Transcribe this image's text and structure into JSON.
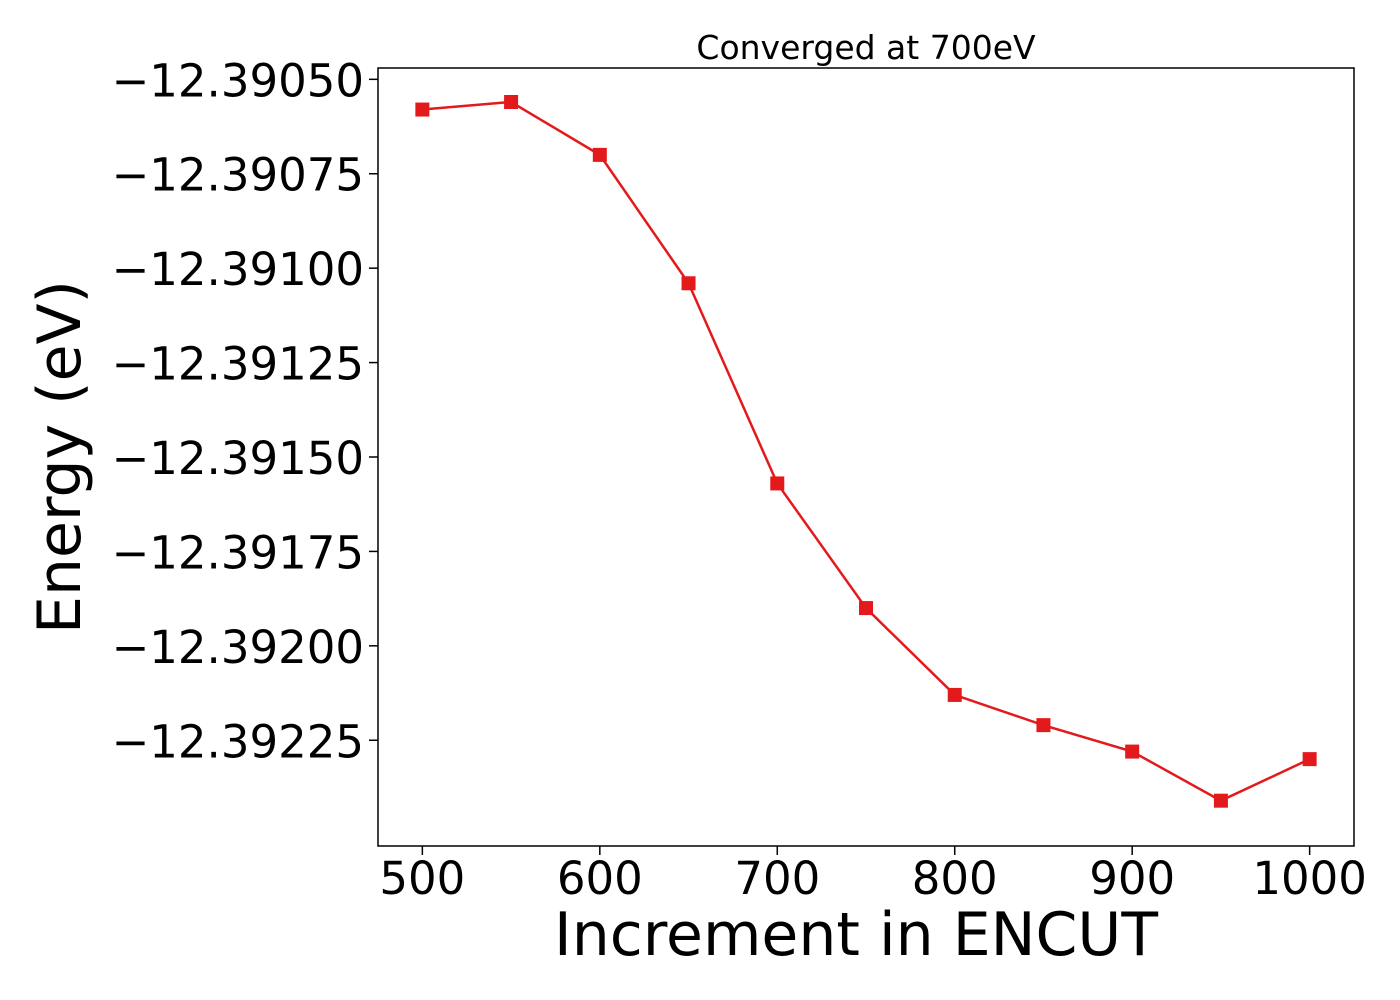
{
  "chart_data": {
    "type": "line",
    "title": "Converged at 700eV",
    "xlabel": "Increment in ENCUT",
    "ylabel": "Energy (eV)",
    "x": [
      500,
      550,
      600,
      650,
      700,
      750,
      800,
      850,
      900,
      950,
      1000
    ],
    "series": [
      {
        "values": [
          -12.39058,
          -12.39056,
          -12.3907,
          -12.39104,
          -12.39157,
          -12.3919,
          -12.39213,
          -12.39221,
          -12.39228,
          -12.39241,
          -12.3923
        ],
        "color": "#e31a1c",
        "marker": "square"
      }
    ],
    "xlim": [
      475,
      1025
    ],
    "ylim": [
      -12.39253,
      -12.39047
    ],
    "xticks": [
      500,
      600,
      700,
      800,
      900,
      1000
    ],
    "xtick_labels": [
      "500",
      "600",
      "700",
      "800",
      "900",
      "1000"
    ],
    "yticks": [
      -12.3905,
      -12.39075,
      -12.391,
      -12.39125,
      -12.3915,
      -12.39175,
      -12.392,
      -12.39225
    ],
    "ytick_labels": [
      "−12.39050",
      "−12.39075",
      "−12.39100",
      "−12.39125",
      "−12.39150",
      "−12.39175",
      "−12.39200",
      "−12.39225"
    ],
    "grid": false,
    "legend": "none"
  }
}
